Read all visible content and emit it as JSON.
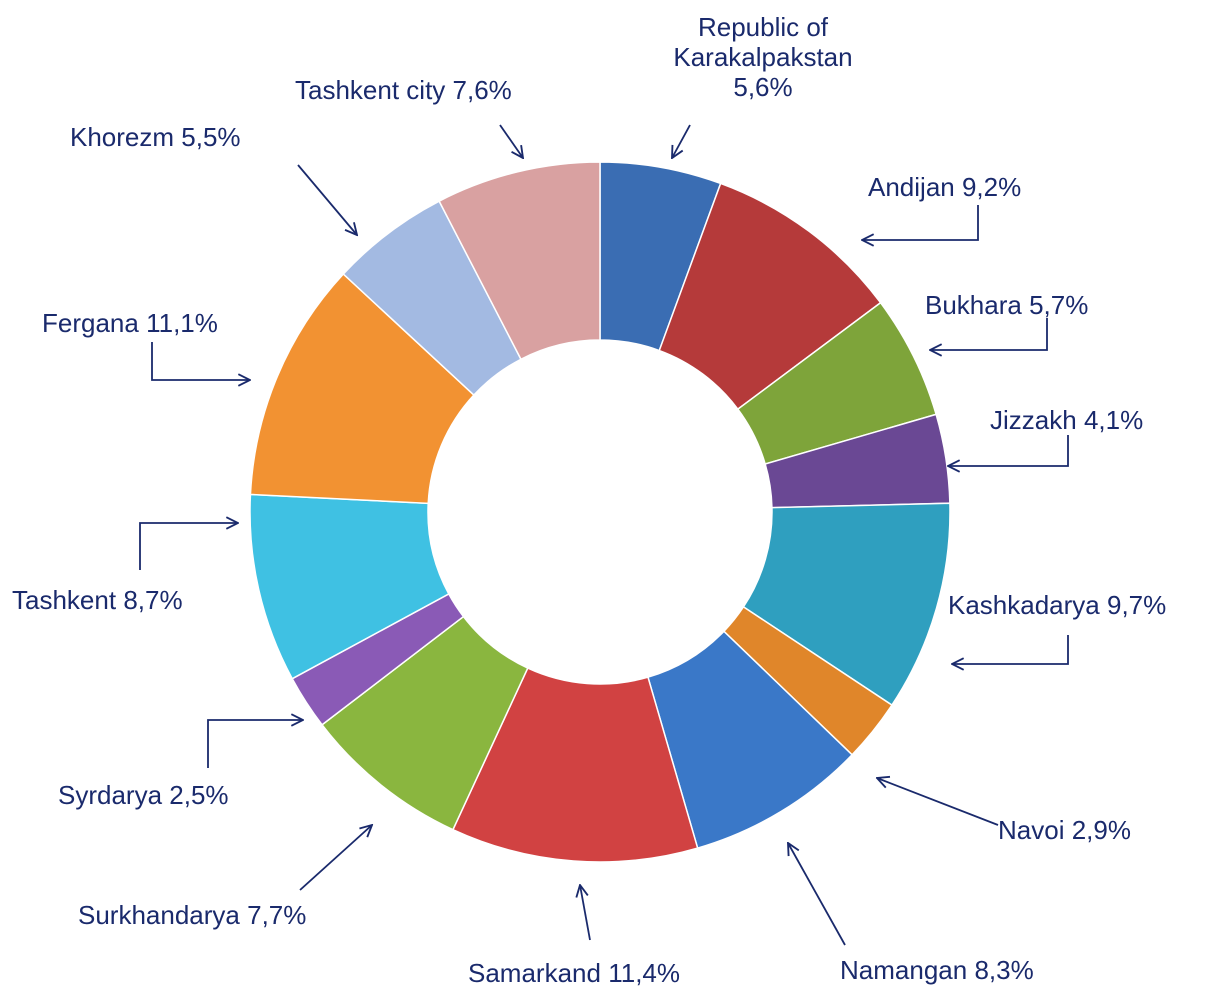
{
  "chart_data": {
    "type": "donut",
    "categories": [
      "Republic of Karakalpakstan",
      "Andijan",
      "Bukhara",
      "Jizzakh",
      "Kashkadarya",
      "Navoi",
      "Namangan",
      "Samarkand",
      "Surkhandarya",
      "Syrdarya",
      "Tashkent",
      "Fergana",
      "Khorezm",
      "Tashkent city"
    ],
    "values": [
      5.6,
      9.2,
      5.7,
      4.1,
      9.7,
      2.9,
      8.3,
      11.4,
      7.7,
      2.5,
      8.7,
      11.1,
      5.5,
      7.6
    ],
    "value_labels": [
      "5,6%",
      "9,2%",
      "5,7%",
      "4,1%",
      "9,7%",
      "2,9%",
      "8,3%",
      "11,4%",
      "7,7%",
      "2,5%",
      "8,7%",
      "11,1%",
      "5,5%",
      "7,6%"
    ],
    "colors": [
      "#3a6db3",
      "#b53a3a",
      "#7ea43a",
      "#6a4894",
      "#2f9fbf",
      "#e0862a",
      "#3a78c8",
      "#d14242",
      "#8ab63f",
      "#8a5ab6",
      "#3fc1e3",
      "#f29232",
      "#a3bae2",
      "#d9a1a1"
    ]
  }
}
